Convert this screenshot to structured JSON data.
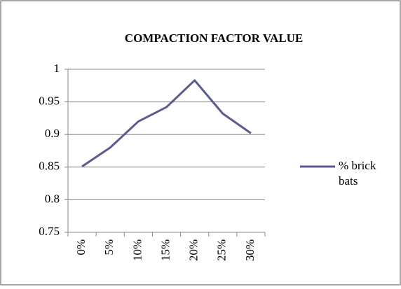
{
  "chart_data": {
    "type": "line",
    "title": "COMPACTION FACTOR VALUE",
    "categories": [
      "0%",
      "5%",
      "10%",
      "15%",
      "20%",
      "25%",
      "30%"
    ],
    "series": [
      {
        "name": "% brick bats",
        "color": "#5b5b8f",
        "values": [
          0.851,
          0.88,
          0.92,
          0.942,
          0.983,
          0.932,
          0.902
        ]
      }
    ],
    "ylim": [
      0.75,
      1
    ],
    "yticks": [
      0.75,
      0.8,
      0.85,
      0.9,
      0.95,
      1
    ],
    "grid": true,
    "legend": "right"
  }
}
